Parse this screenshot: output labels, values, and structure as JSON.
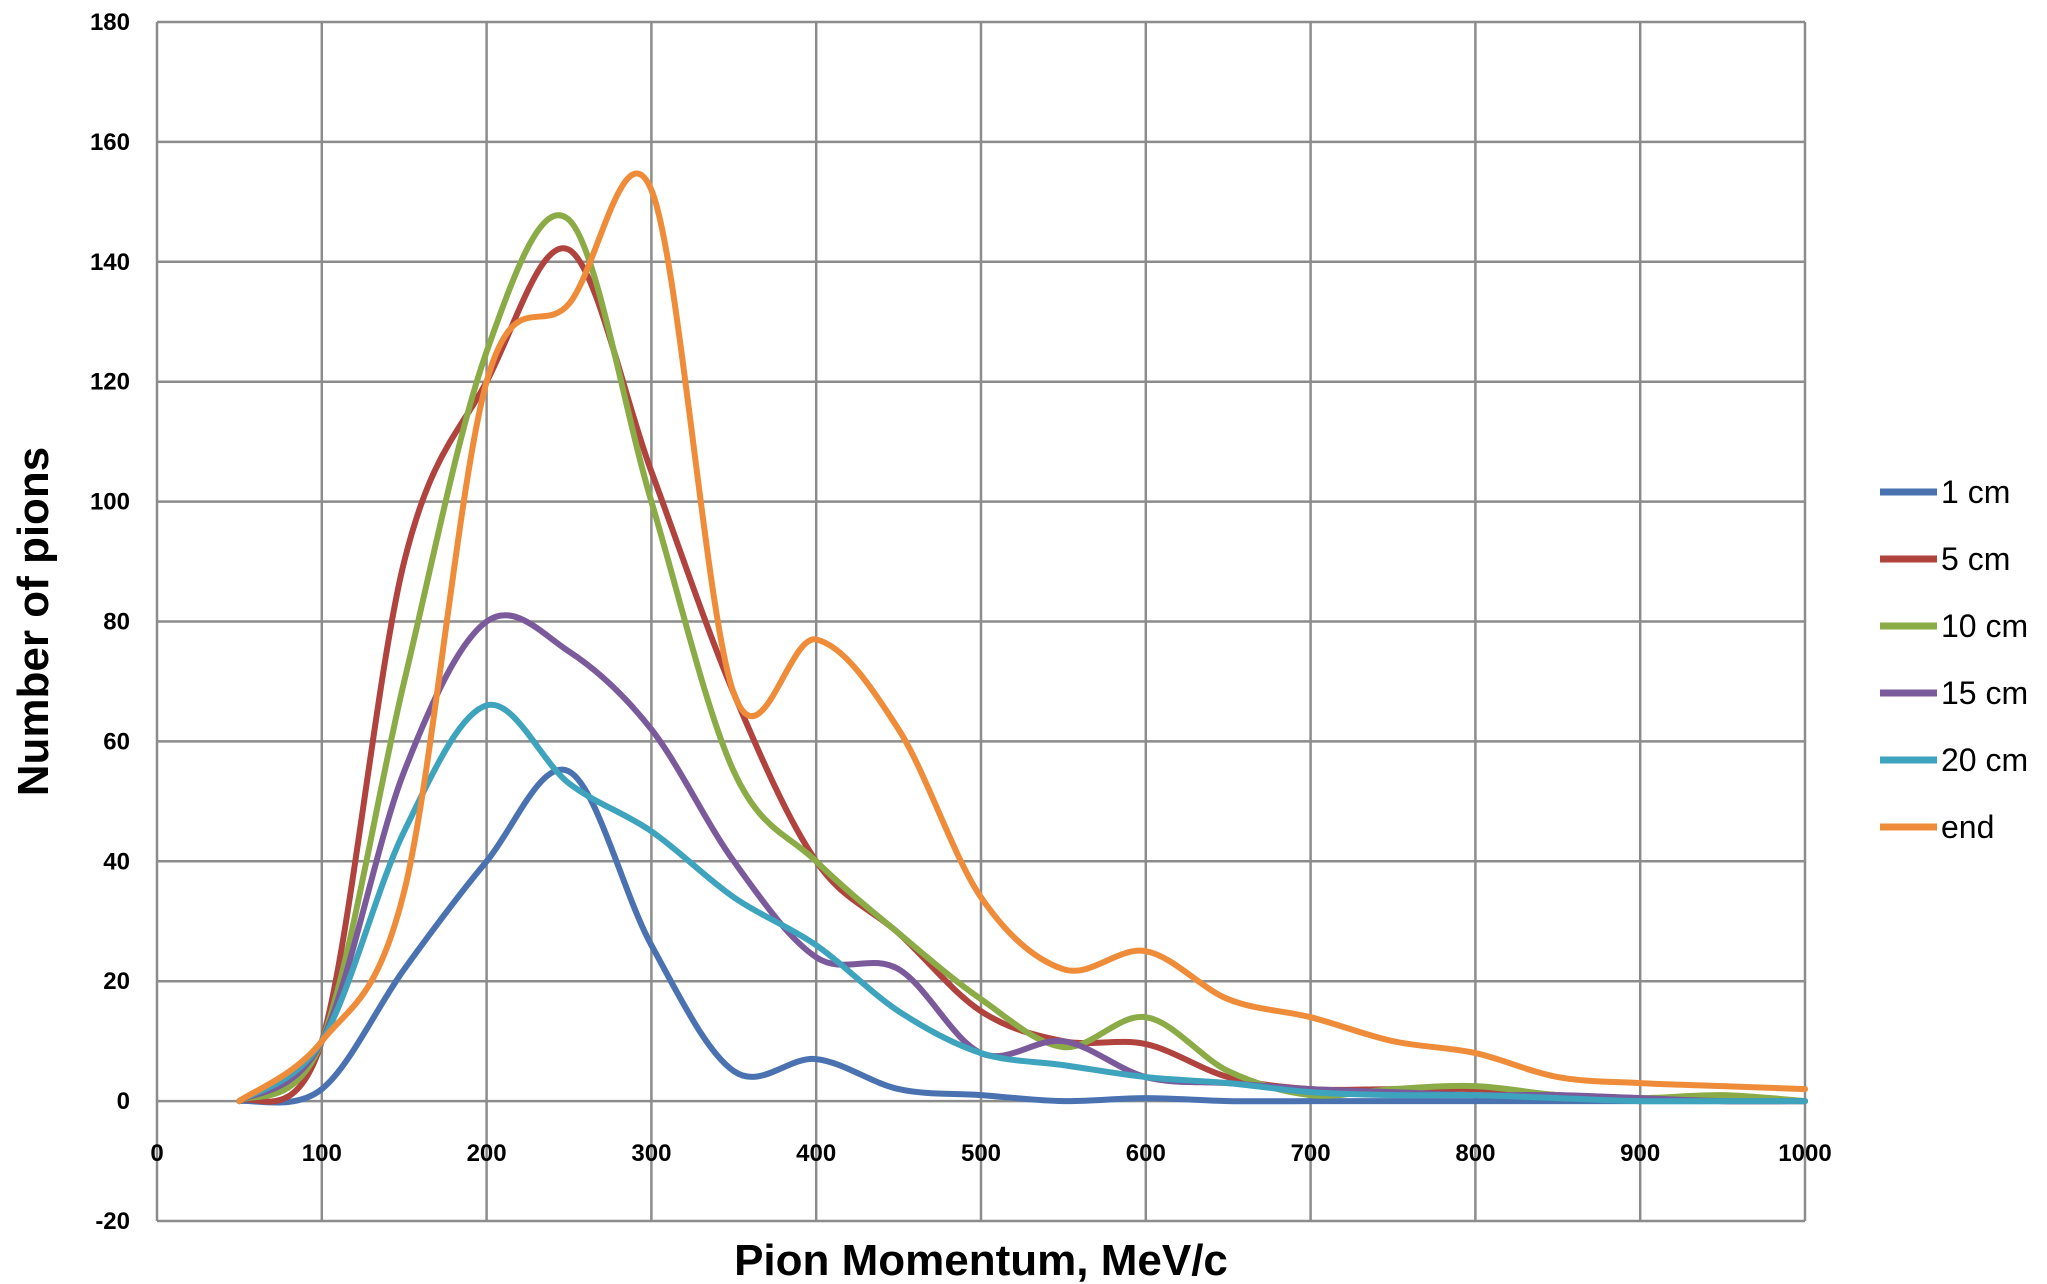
{
  "chart_data": {
    "type": "line",
    "title": "",
    "xlabel": "Pion Momentum, MeV/c",
    "ylabel": "Number of pions",
    "xlim": [
      0,
      1000
    ],
    "ylim": [
      -20,
      180
    ],
    "xticks": [
      0,
      100,
      200,
      300,
      400,
      500,
      600,
      700,
      800,
      900,
      1000
    ],
    "yticks": [
      -20,
      0,
      20,
      40,
      60,
      80,
      100,
      120,
      140,
      160,
      180
    ],
    "grid": true,
    "legend_position": "right",
    "x": [
      50,
      100,
      150,
      200,
      250,
      300,
      350,
      400,
      450,
      500,
      550,
      600,
      650,
      700,
      750,
      800,
      850,
      900,
      950,
      1000
    ],
    "series": [
      {
        "name": "1 cm",
        "color": "#4a72b0",
        "values": [
          0,
          2,
          22,
          40,
          55,
          26,
          5,
          7,
          2,
          1,
          0,
          0.5,
          0,
          0,
          0,
          0,
          0,
          0,
          0,
          0
        ]
      },
      {
        "name": "5 cm",
        "color": "#b0433e",
        "values": [
          0,
          10,
          90,
          120,
          142,
          105,
          68,
          40,
          28,
          15,
          10,
          9.5,
          4,
          2,
          2,
          2,
          1,
          0.5,
          0,
          0
        ]
      },
      {
        "name": "10 cm",
        "color": "#8aab45",
        "values": [
          0,
          10,
          70,
          125,
          147,
          100,
          55,
          40,
          28,
          17,
          9,
          14,
          5,
          1,
          2,
          2.5,
          1,
          0.5,
          1,
          0
        ]
      },
      {
        "name": "15 cm",
        "color": "#7b5a9c",
        "values": [
          0,
          10,
          55,
          80,
          75,
          62,
          40,
          24,
          22,
          8,
          10,
          4,
          3,
          2,
          1.5,
          1,
          1,
          0.5,
          0,
          0
        ]
      },
      {
        "name": "20 cm",
        "color": "#3ea3bd",
        "values": [
          0,
          10,
          45,
          66,
          53,
          45,
          34,
          26,
          15,
          8,
          6,
          4,
          3,
          1.5,
          1,
          1,
          0.5,
          0,
          0,
          0
        ]
      },
      {
        "name": "end",
        "color": "#ee8c3a",
        "values": [
          0,
          10,
          35,
          120,
          133,
          152,
          68,
          77,
          62,
          34,
          22,
          25,
          17,
          14,
          10,
          8,
          4,
          3,
          2.5,
          2
        ]
      }
    ]
  }
}
